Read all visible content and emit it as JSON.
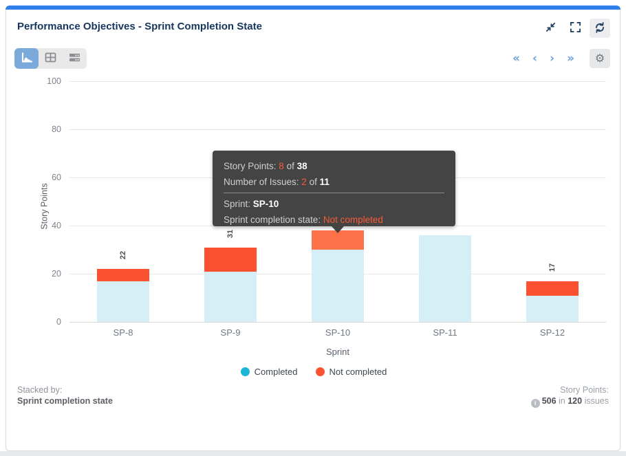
{
  "card": {
    "title": "Performance Objectives - Sprint Completion State"
  },
  "header_actions": {
    "collapse": "collapse",
    "fullscreen": "fullscreen",
    "refresh": "refresh"
  },
  "toolbar": {
    "views": [
      {
        "name": "chart-view",
        "active": true
      },
      {
        "name": "table-view",
        "active": false
      },
      {
        "name": "rows-view",
        "active": false
      }
    ],
    "pagination": {
      "first": "«",
      "prev": "‹",
      "next": "›",
      "last": "»"
    },
    "gear_glyph": "⚙"
  },
  "colors": {
    "accent_blue": "#2e7fec",
    "active_view_bg": "#7aa9da",
    "completed_legend": "#1cb4d9",
    "completed_fill": "#d6eff7",
    "not_completed_fill": "#fb5130",
    "not_completed_hover_fill": "#fd7149",
    "tooltip_bg": "#3e3e3e",
    "tooltip_highlight": "#f95a36"
  },
  "chart_data": {
    "type": "bar",
    "stacked": true,
    "title": "",
    "xlabel": "Sprint",
    "ylabel": "Story Points",
    "categories": [
      "SP-8",
      "SP-9",
      "SP-10",
      "SP-11",
      "SP-12"
    ],
    "series": [
      {
        "name": "Completed",
        "legend_color": "#1cb4d9",
        "bar_fill": "#d6eff7",
        "values": [
          17,
          21,
          30,
          36,
          11
        ]
      },
      {
        "name": "Not completed",
        "legend_color": "#fb5330",
        "bar_fill": "#fb5130",
        "values": [
          5,
          10,
          8,
          0,
          6
        ]
      }
    ],
    "totals": [
      22,
      31,
      38,
      36,
      17
    ],
    "total_labels_visible": [
      true,
      true,
      false,
      false,
      true
    ],
    "hovered_category": "SP-10",
    "hover_fill": "#fd7149",
    "ylim": [
      0,
      100
    ],
    "yticks": [
      0,
      20,
      40,
      60,
      80,
      100
    ],
    "grid": "horizontal",
    "legend_position": "bottom"
  },
  "tooltip": {
    "line1": {
      "label": "Story Points: ",
      "value": "8",
      "of": " of ",
      "total": "38"
    },
    "line2": {
      "label": "Number of Issues: ",
      "value": "2",
      "of": " of ",
      "total": "11"
    },
    "line3": {
      "label": "Sprint: ",
      "value": "SP-10"
    },
    "line4": {
      "label": "Sprint completion state: ",
      "value": "Not completed"
    }
  },
  "footer": {
    "stacked_by_label": "Stacked by:",
    "stacked_by_value": "Sprint completion state",
    "metric_label": "Story Points:",
    "info_glyph": "i",
    "metric_value": "506",
    "metric_join": " in ",
    "issues_count": "120",
    "issues_suffix": " issues"
  }
}
